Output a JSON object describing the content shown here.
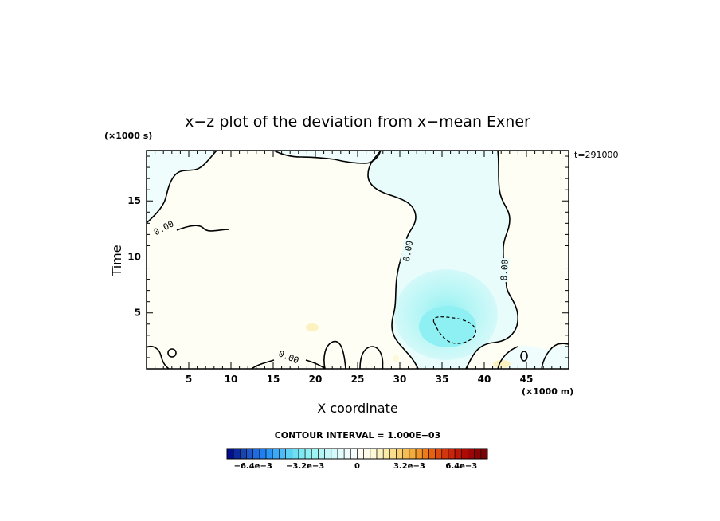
{
  "chart_data": {
    "type": "contour",
    "title": "x−z plot of the deviation from x−mean Exner",
    "xlabel": "X coordinate",
    "ylabel": "Time",
    "x_unit": "(×1000 m)",
    "y_unit": "(×1000 s)",
    "time_label": "t=291000",
    "xlim": [
      0,
      50
    ],
    "ylim": [
      0,
      19.5
    ],
    "x_ticks": [
      5,
      10,
      15,
      20,
      25,
      30,
      35,
      40,
      45
    ],
    "y_ticks": [
      5,
      10,
      15
    ],
    "x_tick_labels": [
      "5",
      "10",
      "15",
      "20",
      "25",
      "30",
      "35",
      "40",
      "45"
    ],
    "y_tick_labels": [
      "5",
      "10",
      "15"
    ],
    "contour_interval_text": "CONTOUR INTERVAL = 1.000E−03",
    "contour_labels": [
      "0.00",
      "0.00",
      "0.00",
      "0.00"
    ],
    "colorbar": {
      "range": [
        -0.008,
        0.008
      ],
      "tick_values": [
        -0.0064,
        -0.0032,
        0,
        0.0032,
        0.0064
      ],
      "tick_labels": [
        "−6.4e−3",
        "−3.2e−3",
        "0",
        "3.2e−3",
        "6.4e−3"
      ],
      "n_levels": 40,
      "colors": [
        "#000e8f",
        "#0c2a9e",
        "#1844b0",
        "#1e57c8",
        "#1f6be0",
        "#1f7ef0",
        "#2a95f5",
        "#3aa9f7",
        "#4dbcf6",
        "#5ecff5",
        "#6edff4",
        "#7ee9f2",
        "#8ef0f2",
        "#a0f3f3",
        "#b2f5f5",
        "#c4f7f7",
        "#d4f9f9",
        "#e2fbfb",
        "#edfcfc",
        "#f6fefe",
        "#fefef4",
        "#fefce8",
        "#fdf8d6",
        "#fcf2c0",
        "#fbe9a6",
        "#f9dd8a",
        "#f7cf6e",
        "#f5be54",
        "#f3ab3c",
        "#f09528",
        "#ec7c1a",
        "#e66212",
        "#de4a0e",
        "#d3360c",
        "#c8250a",
        "#bb1608",
        "#ae0b07",
        "#9e0506",
        "#8c0304",
        "#7a0203"
      ]
    }
  }
}
